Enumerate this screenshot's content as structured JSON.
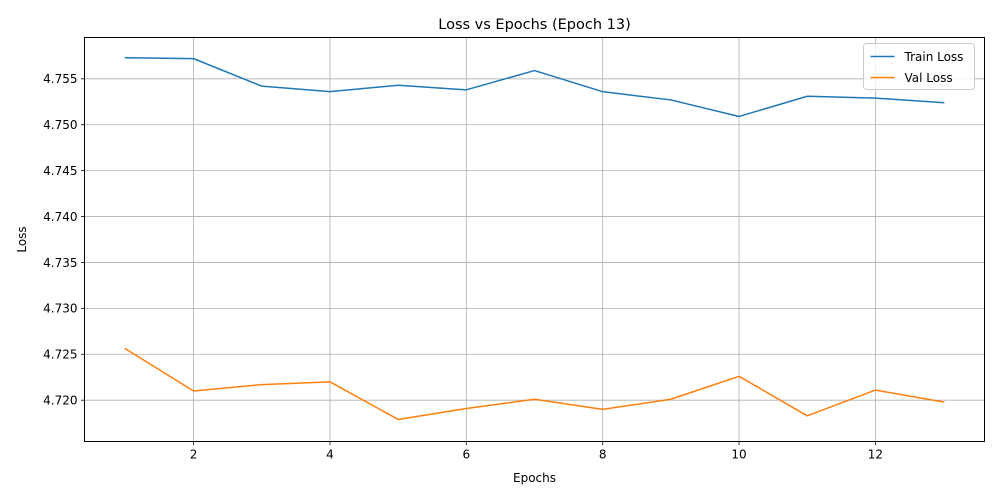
{
  "chart_data": {
    "type": "line",
    "title": "Loss vs Epochs (Epoch 13)",
    "xlabel": "Epochs",
    "ylabel": "Loss",
    "x": [
      1,
      2,
      3,
      4,
      5,
      6,
      7,
      8,
      9,
      10,
      11,
      12,
      13
    ],
    "xlim": [
      0.4,
      13.6
    ],
    "ylim": [
      4.7155,
      4.7595
    ],
    "xticks": [
      2,
      4,
      6,
      8,
      10,
      12
    ],
    "yticks": [
      4.72,
      4.725,
      4.73,
      4.735,
      4.74,
      4.745,
      4.75,
      4.755
    ],
    "xtick_labels": [
      "2",
      "4",
      "6",
      "8",
      "10",
      "12"
    ],
    "ytick_labels": [
      "4.720",
      "4.725",
      "4.730",
      "4.735",
      "4.740",
      "4.745",
      "4.750",
      "4.755"
    ],
    "grid": true,
    "legend_position": "top-right",
    "series": [
      {
        "name": "Train Loss",
        "color": "#1f77b4",
        "values": [
          4.7573,
          4.7572,
          4.7542,
          4.7536,
          4.7543,
          4.7538,
          4.7559,
          4.7536,
          4.7527,
          4.7509,
          4.7531,
          4.7529,
          4.7524
        ]
      },
      {
        "name": "Val Loss",
        "color": "#ff7f0e",
        "values": [
          4.7256,
          4.721,
          4.7217,
          4.722,
          4.7179,
          4.7191,
          4.7201,
          4.719,
          4.7201,
          4.7226,
          4.7183,
          4.7211,
          4.7198
        ]
      }
    ]
  }
}
